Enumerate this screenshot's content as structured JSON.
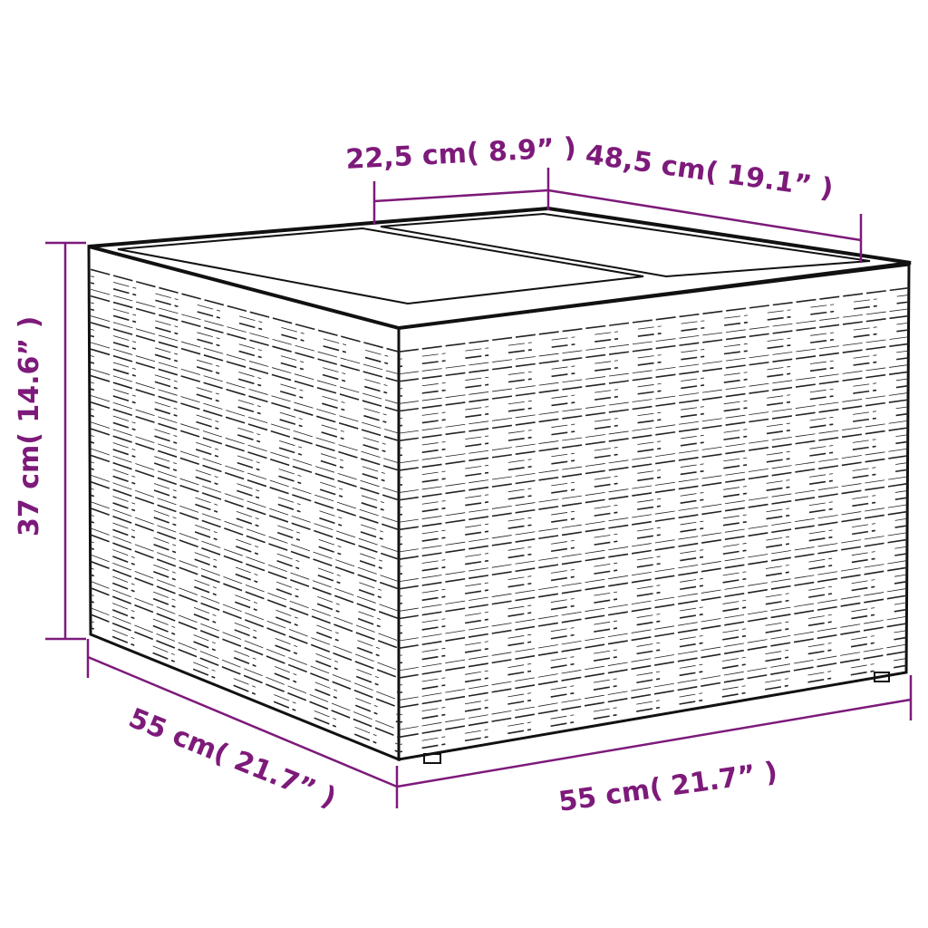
{
  "colors": {
    "dimension": "#7d1a7a",
    "outline": "#111111"
  },
  "dimensions": {
    "top_lid_width": "22,5 cm( 8.9” )",
    "top_depth": "48,5 cm( 19.1” )",
    "height": "37 cm( 14.6” )",
    "side_depth": "55 cm( 21.7” )",
    "front_width": "55 cm( 21.7” )"
  }
}
